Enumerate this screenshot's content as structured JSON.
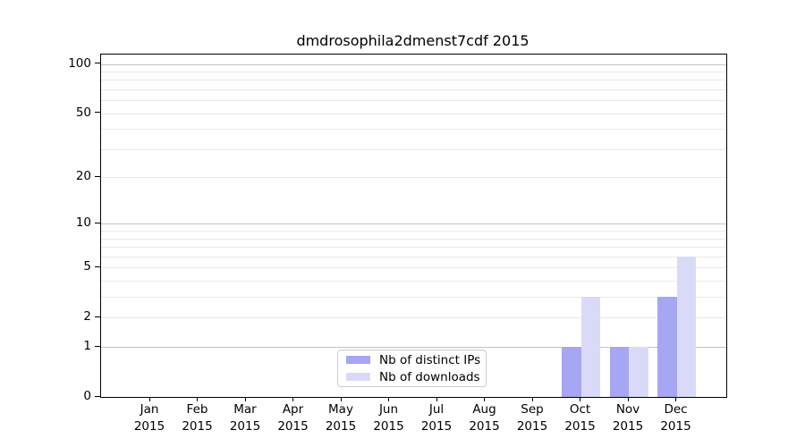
{
  "chart_data": {
    "type": "bar",
    "title": "dmdrosophila2dmenst7cdf 2015",
    "categories": [
      "Jan",
      "Feb",
      "Mar",
      "Apr",
      "May",
      "Jun",
      "Jul",
      "Aug",
      "Sep",
      "Oct",
      "Nov",
      "Dec"
    ],
    "x_tick_year_line": "2015",
    "series": [
      {
        "name": "Nb of distinct IPs",
        "color": "#a6a6f2",
        "values": [
          0,
          0,
          0,
          0,
          0,
          0,
          0,
          0,
          0,
          1,
          1,
          3
        ]
      },
      {
        "name": "Nb of downloads",
        "color": "#dadaf8",
        "values": [
          0,
          0,
          0,
          0,
          0,
          0,
          0,
          0,
          0,
          3,
          1,
          6
        ]
      }
    ],
    "y_axis": {
      "scale": "log10(1+y)",
      "tick_labels": [
        0,
        1,
        2,
        5,
        10,
        20,
        50,
        100
      ],
      "max": 114
    },
    "grid": {
      "major_at": [
        1,
        10,
        100
      ],
      "minor_at": [
        2,
        3,
        4,
        5,
        6,
        7,
        8,
        9,
        20,
        30,
        40,
        50,
        60,
        70,
        80,
        90
      ],
      "major_color": "#c3c3c3",
      "minor_color": "#e9e9e9"
    },
    "legend": {
      "position": "lower center"
    }
  }
}
